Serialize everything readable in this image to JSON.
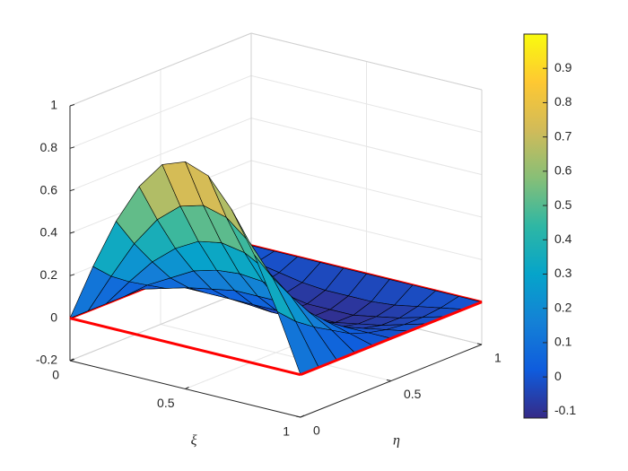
{
  "chart_data": {
    "type": "surface",
    "x_label": "ξ",
    "y_label": "η",
    "x": [
      0,
      0.1,
      0.2,
      0.3,
      0.4,
      0.5,
      0.6,
      0.7,
      0.8,
      0.9,
      1
    ],
    "y": [
      0,
      0.1,
      0.2,
      0.3,
      0.4,
      0.5,
      0.6,
      0.7,
      0.8,
      0.9,
      1
    ],
    "z": [
      [
        0,
        0,
        0,
        0,
        0,
        0,
        0,
        0,
        0,
        0,
        0
      ],
      [
        0.27,
        0.19,
        0.13,
        0.08,
        0.03,
        0,
        -0.02,
        -0.03,
        -0.03,
        -0.02,
        0
      ],
      [
        0.51,
        0.37,
        0.25,
        0.14,
        0.06,
        0,
        -0.04,
        -0.06,
        -0.06,
        -0.04,
        0
      ],
      [
        0.7,
        0.51,
        0.34,
        0.2,
        0.08,
        0,
        -0.06,
        -0.08,
        -0.08,
        -0.06,
        0
      ],
      [
        0.83,
        0.6,
        0.4,
        0.23,
        0.1,
        0,
        -0.07,
        -0.1,
        -0.1,
        -0.07,
        0
      ],
      [
        0.87,
        0.63,
        0.42,
        0.24,
        0.1,
        0,
        -0.07,
        -0.1,
        -0.1,
        -0.07,
        0
      ],
      [
        0.83,
        0.6,
        0.4,
        0.23,
        0.1,
        0,
        -0.07,
        -0.1,
        -0.1,
        -0.07,
        0
      ],
      [
        0.7,
        0.51,
        0.34,
        0.2,
        0.08,
        0,
        -0.06,
        -0.08,
        -0.08,
        -0.06,
        0
      ],
      [
        0.51,
        0.37,
        0.25,
        0.14,
        0.06,
        0,
        -0.04,
        -0.06,
        -0.06,
        -0.04,
        0
      ],
      [
        0.27,
        0.19,
        0.13,
        0.08,
        0.03,
        0,
        -0.02,
        -0.03,
        -0.03,
        -0.02,
        0
      ],
      [
        0,
        0,
        0,
        0,
        0,
        0,
        0,
        0,
        0,
        0,
        0
      ]
    ],
    "xlim": [
      0,
      1
    ],
    "xticks": [
      0,
      0.5,
      1
    ],
    "ylim": [
      0,
      1
    ],
    "yticks": [
      0,
      0.5,
      1
    ],
    "zlim": [
      -0.2,
      1
    ],
    "zticks": [
      -0.2,
      0,
      0.2,
      0.4,
      0.6,
      0.8,
      1
    ],
    "clim": [
      -0.12,
      1
    ],
    "cticks": [
      -0.1,
      0,
      0.1,
      0.2,
      0.3,
      0.4,
      0.5,
      0.6,
      0.7,
      0.8,
      0.9
    ],
    "colormap": [
      "#352a87",
      "#0f5cdd",
      "#1481d6",
      "#06a4ca",
      "#2eb7a4",
      "#87bf77",
      "#d1bb59",
      "#fec832",
      "#f9fb0e"
    ],
    "edge_color": "#000000",
    "boundary_color": "#ff0000",
    "grid": true,
    "colorbar": true
  }
}
